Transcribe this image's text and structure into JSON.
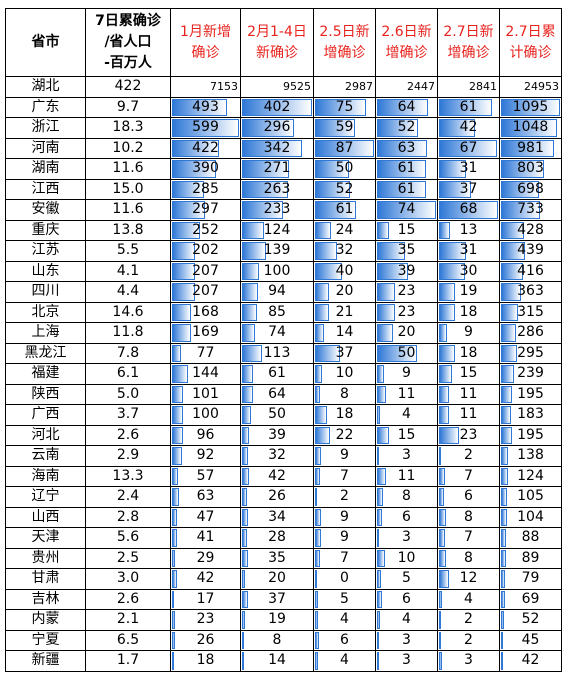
{
  "table": {
    "headers": [
      "省市",
      "7日累确诊\n/省人口\n-百万人",
      "1月新增\n确诊",
      "2月1-4日\n新确诊",
      "2.5日新\n增确诊",
      "2.6日新\n增确诊",
      "2.7日新\n增确诊",
      "2.7日累\n计确诊"
    ],
    "rows": [
      [
        "湖北",
        "422",
        "7153",
        "9525",
        "2987",
        "2447",
        "2841",
        "24953"
      ],
      [
        "广东",
        "9.7",
        "493",
        "402",
        "75",
        "64",
        "61",
        "1095"
      ],
      [
        "浙江",
        "18.3",
        "599",
        "296",
        "59",
        "52",
        "42",
        "1048"
      ],
      [
        "河南",
        "10.2",
        "422",
        "342",
        "87",
        "63",
        "67",
        "981"
      ],
      [
        "湖南",
        "11.6",
        "390",
        "271",
        "50",
        "61",
        "31",
        "803"
      ],
      [
        "江西",
        "15.0",
        "285",
        "263",
        "52",
        "61",
        "37",
        "698"
      ],
      [
        "安徽",
        "11.6",
        "297",
        "233",
        "61",
        "74",
        "68",
        "733"
      ],
      [
        "重庆",
        "13.8",
        "252",
        "124",
        "24",
        "15",
        "13",
        "428"
      ],
      [
        "江苏",
        "5.5",
        "202",
        "139",
        "32",
        "35",
        "31",
        "439"
      ],
      [
        "山东",
        "4.1",
        "207",
        "100",
        "40",
        "39",
        "30",
        "416"
      ],
      [
        "四川",
        "4.4",
        "207",
        "94",
        "20",
        "23",
        "19",
        "363"
      ],
      [
        "北京",
        "14.6",
        "168",
        "85",
        "21",
        "23",
        "18",
        "315"
      ],
      [
        "上海",
        "11.8",
        "169",
        "74",
        "14",
        "20",
        "9",
        "286"
      ],
      [
        "黑龙江",
        "7.8",
        "77",
        "113",
        "37",
        "50",
        "18",
        "295"
      ],
      [
        "福建",
        "6.1",
        "144",
        "61",
        "10",
        "9",
        "15",
        "239"
      ],
      [
        "陕西",
        "5.0",
        "101",
        "64",
        "8",
        "11",
        "11",
        "195"
      ],
      [
        "广西",
        "3.7",
        "100",
        "50",
        "18",
        "4",
        "11",
        "183"
      ],
      [
        "河北",
        "2.6",
        "96",
        "39",
        "22",
        "15",
        "23",
        "195"
      ],
      [
        "云南",
        "2.9",
        "92",
        "32",
        "9",
        "3",
        "2",
        "138"
      ],
      [
        "海南",
        "13.3",
        "57",
        "42",
        "7",
        "11",
        "7",
        "124"
      ],
      [
        "辽宁",
        "2.4",
        "63",
        "26",
        "2",
        "8",
        "6",
        "105"
      ],
      [
        "山西",
        "2.8",
        "47",
        "34",
        "9",
        "6",
        "8",
        "104"
      ],
      [
        "天津",
        "5.6",
        "41",
        "28",
        "9",
        "3",
        "7",
        "88"
      ],
      [
        "贵州",
        "2.5",
        "29",
        "35",
        "7",
        "10",
        "8",
        "89"
      ],
      [
        "甘肃",
        "3.0",
        "42",
        "20",
        "0",
        "5",
        "12",
        "79"
      ],
      [
        "吉林",
        "2.6",
        "17",
        "37",
        "5",
        "6",
        "4",
        "69"
      ],
      [
        "内蒙",
        "2.1",
        "23",
        "19",
        "4",
        "4",
        "2",
        "52"
      ],
      [
        "宁夏",
        "6.5",
        "26",
        "8",
        "6",
        "3",
        "2",
        "45"
      ],
      [
        "新疆",
        "1.7",
        "18",
        "14",
        "4",
        "3",
        "3",
        "42"
      ]
    ]
  }
}
